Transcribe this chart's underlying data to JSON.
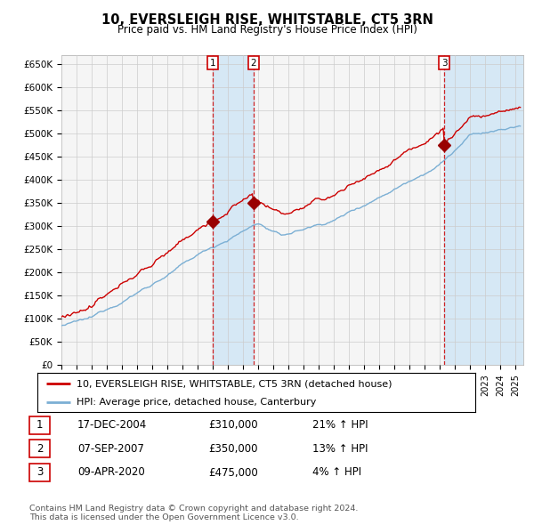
{
  "title": "10, EVERSLEIGH RISE, WHITSTABLE, CT5 3RN",
  "subtitle": "Price paid vs. HM Land Registry's House Price Index (HPI)",
  "ylabel_ticks": [
    "£0",
    "£50K",
    "£100K",
    "£150K",
    "£200K",
    "£250K",
    "£300K",
    "£350K",
    "£400K",
    "£450K",
    "£500K",
    "£550K",
    "£600K",
    "£650K"
  ],
  "ytick_values": [
    0,
    50000,
    100000,
    150000,
    200000,
    250000,
    300000,
    350000,
    400000,
    450000,
    500000,
    550000,
    600000,
    650000
  ],
  "ylim": [
    0,
    670000
  ],
  "xlim_start": 1995.0,
  "xlim_end": 2025.5,
  "sales": [
    {
      "label": "1",
      "date_num": 2004.97,
      "price": 310000
    },
    {
      "label": "2",
      "date_num": 2007.68,
      "price": 350000
    },
    {
      "label": "3",
      "date_num": 2020.27,
      "price": 475000
    }
  ],
  "legend_line1": "10, EVERSLEIGH RISE, WHITSTABLE, CT5 3RN (detached house)",
  "legend_line2": "HPI: Average price, detached house, Canterbury",
  "table_rows": [
    {
      "num": "1",
      "date": "17-DEC-2004",
      "price": "£310,000",
      "change": "21% ↑ HPI"
    },
    {
      "num": "2",
      "date": "07-SEP-2007",
      "price": "£350,000",
      "change": "13% ↑ HPI"
    },
    {
      "num": "3",
      "date": "09-APR-2020",
      "price": "£475,000",
      "change": "4% ↑ HPI"
    }
  ],
  "footnote1": "Contains HM Land Registry data © Crown copyright and database right 2024.",
  "footnote2": "This data is licensed under the Open Government Licence v3.0.",
  "hpi_color": "#7bafd4",
  "price_color": "#cc0000",
  "sale_marker_color": "#990000",
  "grid_color": "#cccccc",
  "bg_color": "#f5f5f5",
  "shade_color": "#d6e8f5"
}
